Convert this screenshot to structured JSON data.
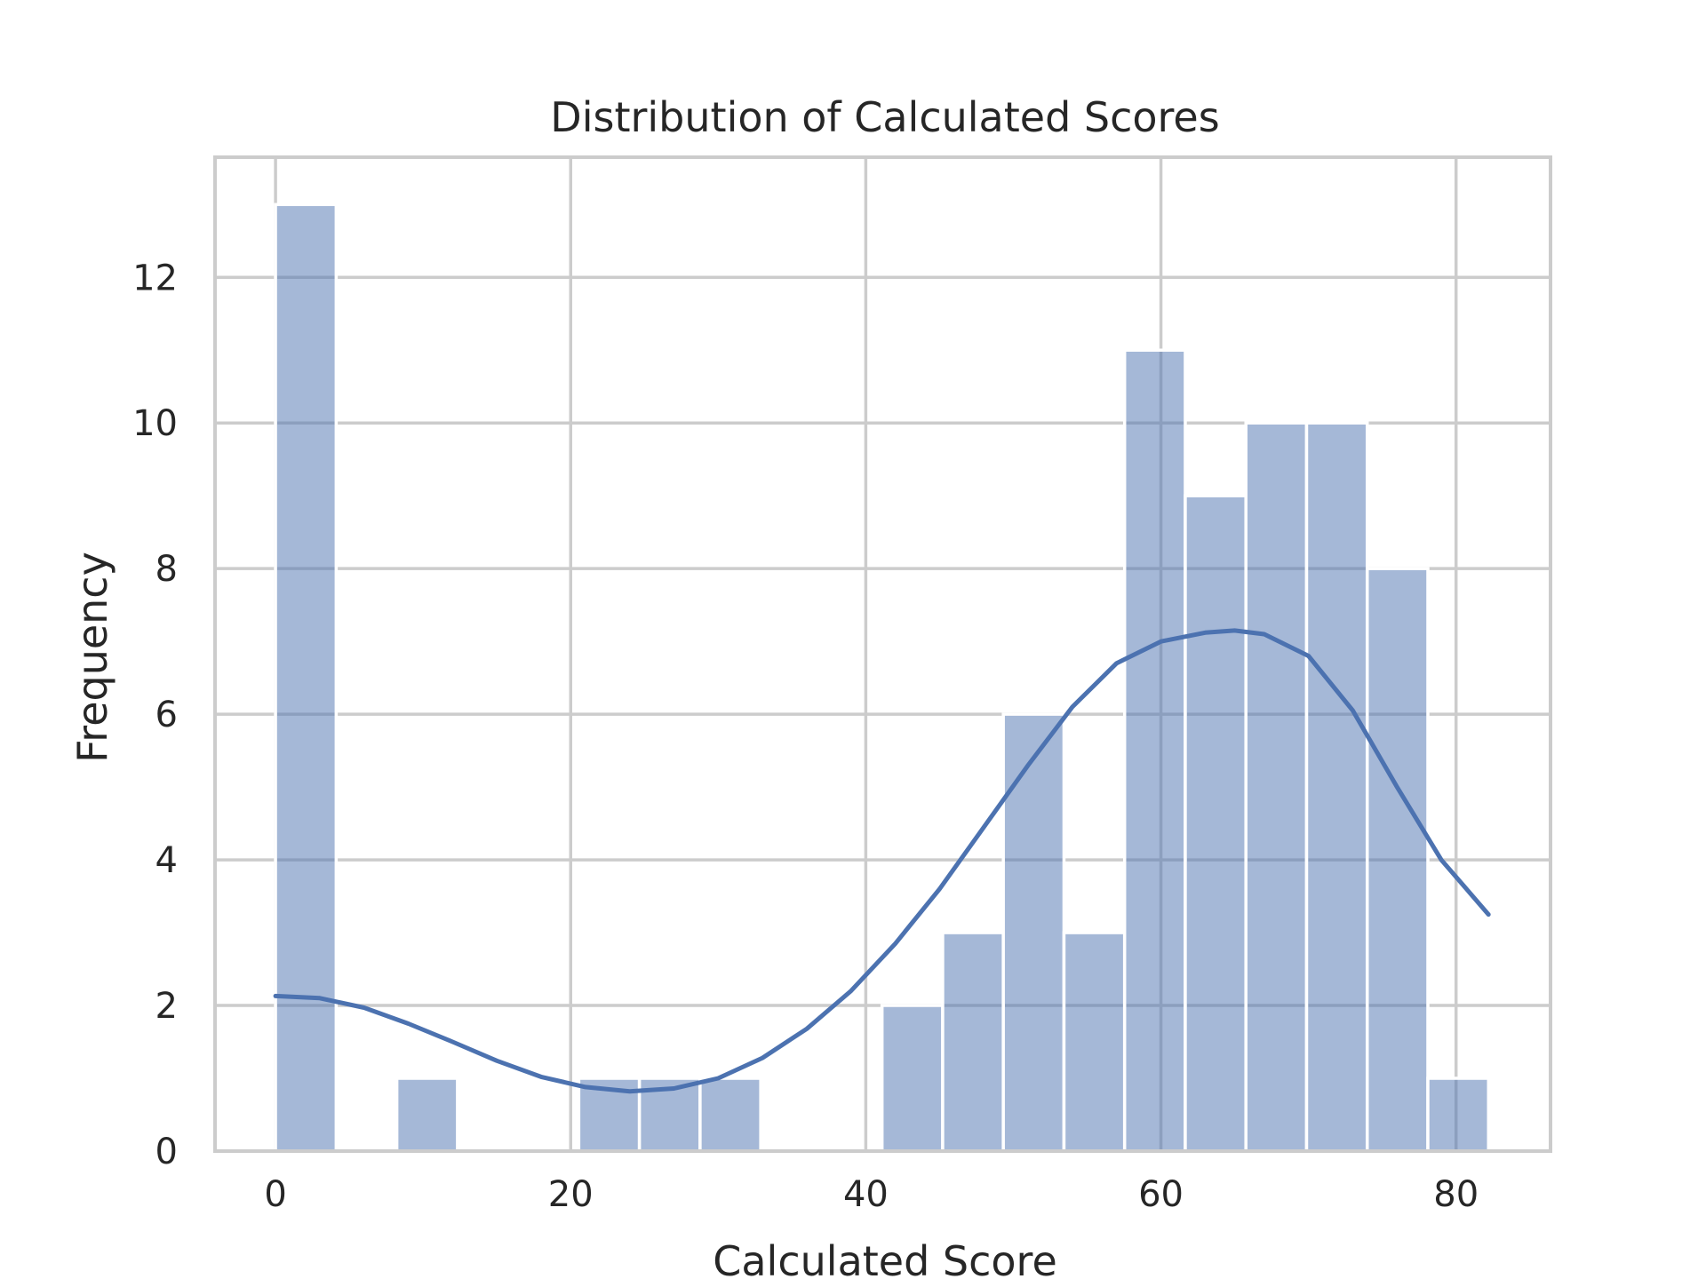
{
  "chart_data": {
    "type": "bar",
    "subtype": "histogram-with-kde",
    "title": "Distribution of Calculated Scores",
    "xlabel": "Calculated Score",
    "ylabel": "Frequency",
    "xlim": [
      -4.1,
      86.4
    ],
    "ylim": [
      0,
      13.65
    ],
    "xticks": [
      0,
      20,
      40,
      60,
      80
    ],
    "yticks": [
      0,
      2,
      4,
      6,
      8,
      10,
      12
    ],
    "grid": true,
    "bar_color": "#4c72b0",
    "bar_alpha": 0.5,
    "kde_color": "#4c72b0",
    "bin_edges": [
      0,
      4.11,
      8.22,
      12.33,
      16.44,
      20.55,
      24.66,
      28.77,
      32.88,
      36.99,
      41.1,
      45.21,
      49.32,
      53.43,
      57.54,
      61.65,
      65.76,
      69.87,
      73.98,
      78.09,
      82.2
    ],
    "counts": [
      13,
      0,
      1,
      0,
      0,
      1,
      1,
      1,
      0,
      0,
      2,
      3,
      6,
      3,
      11,
      9,
      10,
      10,
      8,
      1
    ],
    "kde": {
      "x": [
        0,
        3,
        6,
        9,
        12,
        15,
        18,
        21,
        24,
        27,
        30,
        33,
        36,
        39,
        42,
        45,
        48,
        51,
        54,
        57,
        60,
        63,
        65,
        67,
        70,
        73,
        76,
        79,
        82.2
      ],
      "y": [
        2.13,
        2.1,
        1.97,
        1.75,
        1.5,
        1.24,
        1.02,
        0.88,
        0.82,
        0.86,
        1.0,
        1.28,
        1.68,
        2.2,
        2.85,
        3.6,
        4.45,
        5.3,
        6.1,
        6.7,
        7.0,
        7.12,
        7.15,
        7.1,
        6.8,
        6.05,
        5.0,
        4.0,
        3.25
      ]
    }
  }
}
